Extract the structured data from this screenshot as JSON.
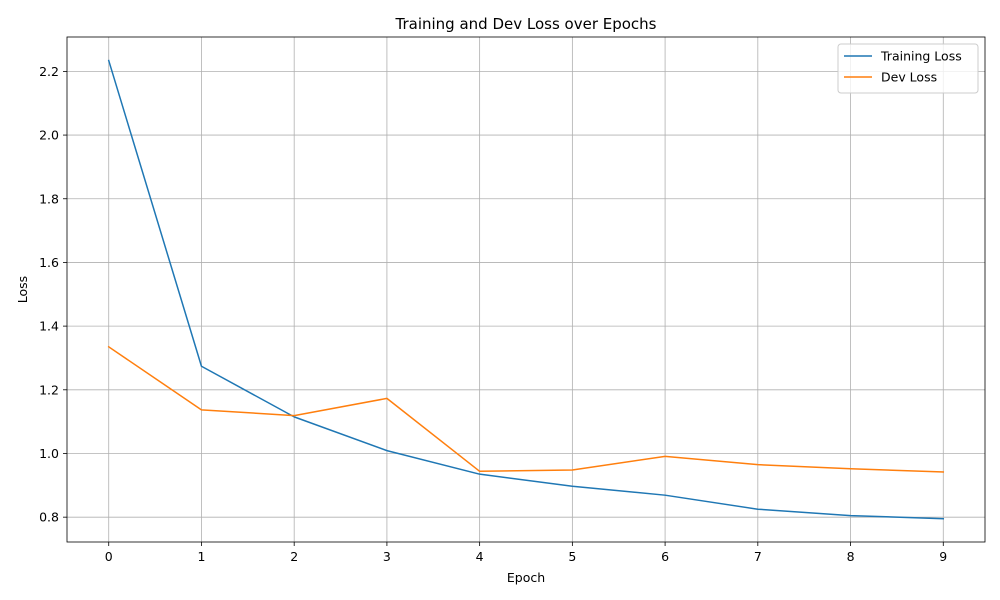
{
  "chart_data": {
    "type": "line",
    "title": "Training and Dev Loss over Epochs",
    "xlabel": "Epoch",
    "ylabel": "Loss",
    "x": [
      0,
      1,
      2,
      3,
      4,
      5,
      6,
      7,
      8,
      9
    ],
    "xticks": [
      "0",
      "1",
      "2",
      "3",
      "4",
      "5",
      "6",
      "7",
      "8",
      "9"
    ],
    "yticks": [
      "0.8",
      "1.0",
      "1.2",
      "1.4",
      "1.6",
      "1.8",
      "2.0",
      "2.2"
    ],
    "xlim": [
      -0.45,
      9.45
    ],
    "ylim": [
      0.722,
      2.308
    ],
    "grid": true,
    "legend_position": "top-right",
    "series": [
      {
        "name": "Training Loss",
        "color": "#1f77b4",
        "values": [
          2.234,
          1.274,
          1.115,
          1.009,
          0.935,
          0.897,
          0.869,
          0.825,
          0.805,
          0.795
        ]
      },
      {
        "name": "Dev Loss",
        "color": "#ff7f0e",
        "values": [
          1.335,
          1.137,
          1.119,
          1.173,
          0.944,
          0.948,
          0.991,
          0.965,
          0.952,
          0.942
        ]
      }
    ]
  }
}
